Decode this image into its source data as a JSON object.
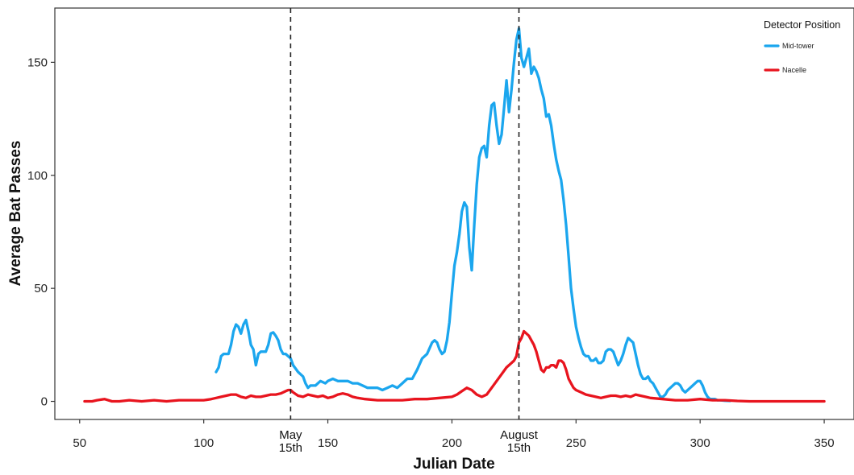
{
  "chart_data": {
    "type": "line",
    "xlabel": "Julian Date",
    "ylabel": "Average Bat Passes",
    "xlim": [
      40,
      362
    ],
    "ylim": [
      -8,
      174
    ],
    "x_ticks": [
      50,
      100,
      150,
      200,
      250,
      300,
      350
    ],
    "y_ticks": [
      0,
      50,
      100,
      150
    ],
    "grid": false,
    "legend": {
      "title": "Detector Position",
      "position": "top-right",
      "entries": [
        "Mid-tower",
        "Nacelle"
      ]
    },
    "annotations": [
      {
        "x": 135,
        "lines": [
          "May",
          "15th"
        ],
        "style": "dashed-vertical"
      },
      {
        "x": 227,
        "lines": [
          "August",
          "15th"
        ],
        "style": "dashed-vertical"
      }
    ],
    "series": [
      {
        "name": "Mid-tower",
        "color": "#1BA6EE",
        "points": [
          [
            105,
            13
          ],
          [
            106,
            15
          ],
          [
            107,
            20
          ],
          [
            108,
            21
          ],
          [
            110,
            21
          ],
          [
            111,
            25
          ],
          [
            112,
            31
          ],
          [
            113,
            34
          ],
          [
            114,
            33
          ],
          [
            115,
            30
          ],
          [
            116,
            34
          ],
          [
            117,
            36
          ],
          [
            118,
            31
          ],
          [
            119,
            25
          ],
          [
            120,
            23
          ],
          [
            121,
            16
          ],
          [
            122,
            21
          ],
          [
            123,
            22
          ],
          [
            125,
            22
          ],
          [
            126,
            25
          ],
          [
            127,
            30
          ],
          [
            128,
            30.5
          ],
          [
            129,
            29
          ],
          [
            130,
            27
          ],
          [
            131,
            23
          ],
          [
            132,
            21
          ],
          [
            133,
            21
          ],
          [
            134,
            20
          ],
          [
            135,
            19
          ],
          [
            136,
            16
          ],
          [
            138,
            13
          ],
          [
            140,
            11
          ],
          [
            141,
            8
          ],
          [
            142,
            6
          ],
          [
            143,
            7
          ],
          [
            145,
            7
          ],
          [
            147,
            9
          ],
          [
            149,
            8
          ],
          [
            150,
            9
          ],
          [
            152,
            10
          ],
          [
            154,
            9
          ],
          [
            156,
            9
          ],
          [
            158,
            9
          ],
          [
            160,
            8
          ],
          [
            162,
            8
          ],
          [
            164,
            7
          ],
          [
            166,
            6
          ],
          [
            168,
            6
          ],
          [
            170,
            6
          ],
          [
            172,
            5
          ],
          [
            174,
            6
          ],
          [
            176,
            7
          ],
          [
            178,
            6
          ],
          [
            180,
            8
          ],
          [
            182,
            10
          ],
          [
            184,
            10
          ],
          [
            186,
            14
          ],
          [
            188,
            19
          ],
          [
            190,
            21
          ],
          [
            192,
            26
          ],
          [
            193,
            27
          ],
          [
            194,
            26
          ],
          [
            195,
            23
          ],
          [
            196,
            21
          ],
          [
            197,
            22
          ],
          [
            198,
            27
          ],
          [
            199,
            35
          ],
          [
            200,
            48
          ],
          [
            201,
            60
          ],
          [
            202,
            66
          ],
          [
            203,
            74
          ],
          [
            204,
            84
          ],
          [
            205,
            88
          ],
          [
            206,
            86
          ],
          [
            207,
            68
          ],
          [
            208,
            58
          ],
          [
            209,
            78
          ],
          [
            210,
            96
          ],
          [
            211,
            108
          ],
          [
            212,
            112
          ],
          [
            213,
            113
          ],
          [
            214,
            108
          ],
          [
            215,
            122
          ],
          [
            216,
            131
          ],
          [
            217,
            132
          ],
          [
            218,
            122
          ],
          [
            219,
            114
          ],
          [
            220,
            118
          ],
          [
            221,
            130
          ],
          [
            222,
            142
          ],
          [
            223,
            128
          ],
          [
            224,
            138
          ],
          [
            225,
            150
          ],
          [
            226,
            160
          ],
          [
            227,
            165
          ],
          [
            228,
            152
          ],
          [
            229,
            148
          ],
          [
            230,
            152
          ],
          [
            231,
            156
          ],
          [
            232,
            145
          ],
          [
            233,
            148
          ],
          [
            234,
            146
          ],
          [
            235,
            143
          ],
          [
            236,
            138
          ],
          [
            237,
            134
          ],
          [
            238,
            126
          ],
          [
            239,
            127
          ],
          [
            240,
            122
          ],
          [
            241,
            114
          ],
          [
            242,
            107
          ],
          [
            243,
            102
          ],
          [
            244,
            98
          ],
          [
            245,
            89
          ],
          [
            246,
            78
          ],
          [
            247,
            64
          ],
          [
            248,
            50
          ],
          [
            249,
            41
          ],
          [
            250,
            33
          ],
          [
            251,
            28
          ],
          [
            252,
            24
          ],
          [
            253,
            21
          ],
          [
            254,
            20
          ],
          [
            255,
            20
          ],
          [
            256,
            18
          ],
          [
            257,
            18
          ],
          [
            258,
            19
          ],
          [
            259,
            17
          ],
          [
            260,
            17
          ],
          [
            261,
            18
          ],
          [
            262,
            22
          ],
          [
            263,
            23
          ],
          [
            264,
            23
          ],
          [
            265,
            22
          ],
          [
            266,
            19
          ],
          [
            267,
            16
          ],
          [
            268,
            18
          ],
          [
            269,
            21
          ],
          [
            270,
            25
          ],
          [
            271,
            28
          ],
          [
            272,
            27
          ],
          [
            273,
            26
          ],
          [
            274,
            21
          ],
          [
            275,
            16
          ],
          [
            276,
            12
          ],
          [
            277,
            10
          ],
          [
            278,
            10
          ],
          [
            279,
            11
          ],
          [
            280,
            9
          ],
          [
            281,
            8
          ],
          [
            282,
            6
          ],
          [
            283,
            4
          ],
          [
            284,
            2
          ],
          [
            285,
            2
          ],
          [
            286,
            3
          ],
          [
            287,
            5
          ],
          [
            288,
            6
          ],
          [
            289,
            7
          ],
          [
            290,
            8
          ],
          [
            291,
            8
          ],
          [
            292,
            7
          ],
          [
            293,
            5
          ],
          [
            294,
            4
          ],
          [
            295,
            5
          ],
          [
            296,
            6
          ],
          [
            297,
            7
          ],
          [
            298,
            8
          ],
          [
            299,
            9
          ],
          [
            300,
            9
          ],
          [
            301,
            7
          ],
          [
            302,
            4
          ],
          [
            303,
            2
          ],
          [
            304,
            1
          ],
          [
            305,
            1
          ],
          [
            306,
            1
          ],
          [
            307,
            0.5
          ],
          [
            308,
            0.5
          ],
          [
            310,
            0.3
          ],
          [
            312,
            0.2
          ]
        ]
      },
      {
        "name": "Nacelle",
        "color": "#E8141E",
        "points": [
          [
            52,
            0
          ],
          [
            55,
            0
          ],
          [
            57,
            0.5
          ],
          [
            60,
            1
          ],
          [
            63,
            0
          ],
          [
            66,
            0
          ],
          [
            70,
            0.5
          ],
          [
            75,
            0
          ],
          [
            80,
            0.5
          ],
          [
            85,
            0
          ],
          [
            90,
            0.5
          ],
          [
            95,
            0.5
          ],
          [
            100,
            0.5
          ],
          [
            103,
            1
          ],
          [
            105,
            1.5
          ],
          [
            107,
            2
          ],
          [
            109,
            2.5
          ],
          [
            111,
            3
          ],
          [
            113,
            3
          ],
          [
            115,
            2
          ],
          [
            117,
            1.5
          ],
          [
            119,
            2.5
          ],
          [
            121,
            2
          ],
          [
            123,
            2
          ],
          [
            125,
            2.5
          ],
          [
            127,
            3
          ],
          [
            129,
            3
          ],
          [
            131,
            3.5
          ],
          [
            133,
            4.5
          ],
          [
            134,
            5
          ],
          [
            135,
            5
          ],
          [
            136,
            4
          ],
          [
            138,
            2.5
          ],
          [
            140,
            2
          ],
          [
            142,
            3
          ],
          [
            144,
            2.5
          ],
          [
            146,
            2
          ],
          [
            148,
            2.5
          ],
          [
            150,
            1.5
          ],
          [
            152,
            2
          ],
          [
            154,
            3
          ],
          [
            156,
            3.5
          ],
          [
            158,
            3
          ],
          [
            160,
            2
          ],
          [
            162,
            1.5
          ],
          [
            165,
            1
          ],
          [
            170,
            0.5
          ],
          [
            175,
            0.5
          ],
          [
            180,
            0.5
          ],
          [
            185,
            1
          ],
          [
            190,
            1
          ],
          [
            195,
            1.5
          ],
          [
            200,
            2
          ],
          [
            202,
            3
          ],
          [
            204,
            4.5
          ],
          [
            206,
            6
          ],
          [
            208,
            5
          ],
          [
            210,
            3
          ],
          [
            212,
            2
          ],
          [
            214,
            3
          ],
          [
            216,
            6
          ],
          [
            218,
            9
          ],
          [
            220,
            12
          ],
          [
            222,
            15
          ],
          [
            224,
            17
          ],
          [
            225,
            18
          ],
          [
            226,
            20
          ],
          [
            227,
            26
          ],
          [
            228,
            28
          ],
          [
            229,
            31
          ],
          [
            230,
            30
          ],
          [
            231,
            29
          ],
          [
            232,
            27
          ],
          [
            233,
            25
          ],
          [
            234,
            22
          ],
          [
            235,
            18
          ],
          [
            236,
            14
          ],
          [
            237,
            13
          ],
          [
            238,
            15
          ],
          [
            239,
            15
          ],
          [
            240,
            16
          ],
          [
            241,
            16
          ],
          [
            242,
            15
          ],
          [
            243,
            18
          ],
          [
            244,
            18
          ],
          [
            245,
            17
          ],
          [
            246,
            14
          ],
          [
            247,
            10
          ],
          [
            248,
            8
          ],
          [
            249,
            6
          ],
          [
            250,
            5
          ],
          [
            252,
            4
          ],
          [
            254,
            3
          ],
          [
            256,
            2.5
          ],
          [
            258,
            2
          ],
          [
            260,
            1.5
          ],
          [
            262,
            2
          ],
          [
            264,
            2.5
          ],
          [
            266,
            2.5
          ],
          [
            268,
            2
          ],
          [
            270,
            2.5
          ],
          [
            272,
            2
          ],
          [
            274,
            3
          ],
          [
            276,
            2.5
          ],
          [
            278,
            2
          ],
          [
            280,
            1.5
          ],
          [
            285,
            1
          ],
          [
            290,
            0.5
          ],
          [
            295,
            0.5
          ],
          [
            300,
            1
          ],
          [
            305,
            0.5
          ],
          [
            310,
            0.5
          ],
          [
            315,
            0.2
          ],
          [
            320,
            0
          ],
          [
            325,
            0
          ],
          [
            330,
            0
          ],
          [
            335,
            0
          ],
          [
            340,
            0
          ],
          [
            345,
            0
          ],
          [
            350,
            0
          ]
        ]
      }
    ]
  }
}
